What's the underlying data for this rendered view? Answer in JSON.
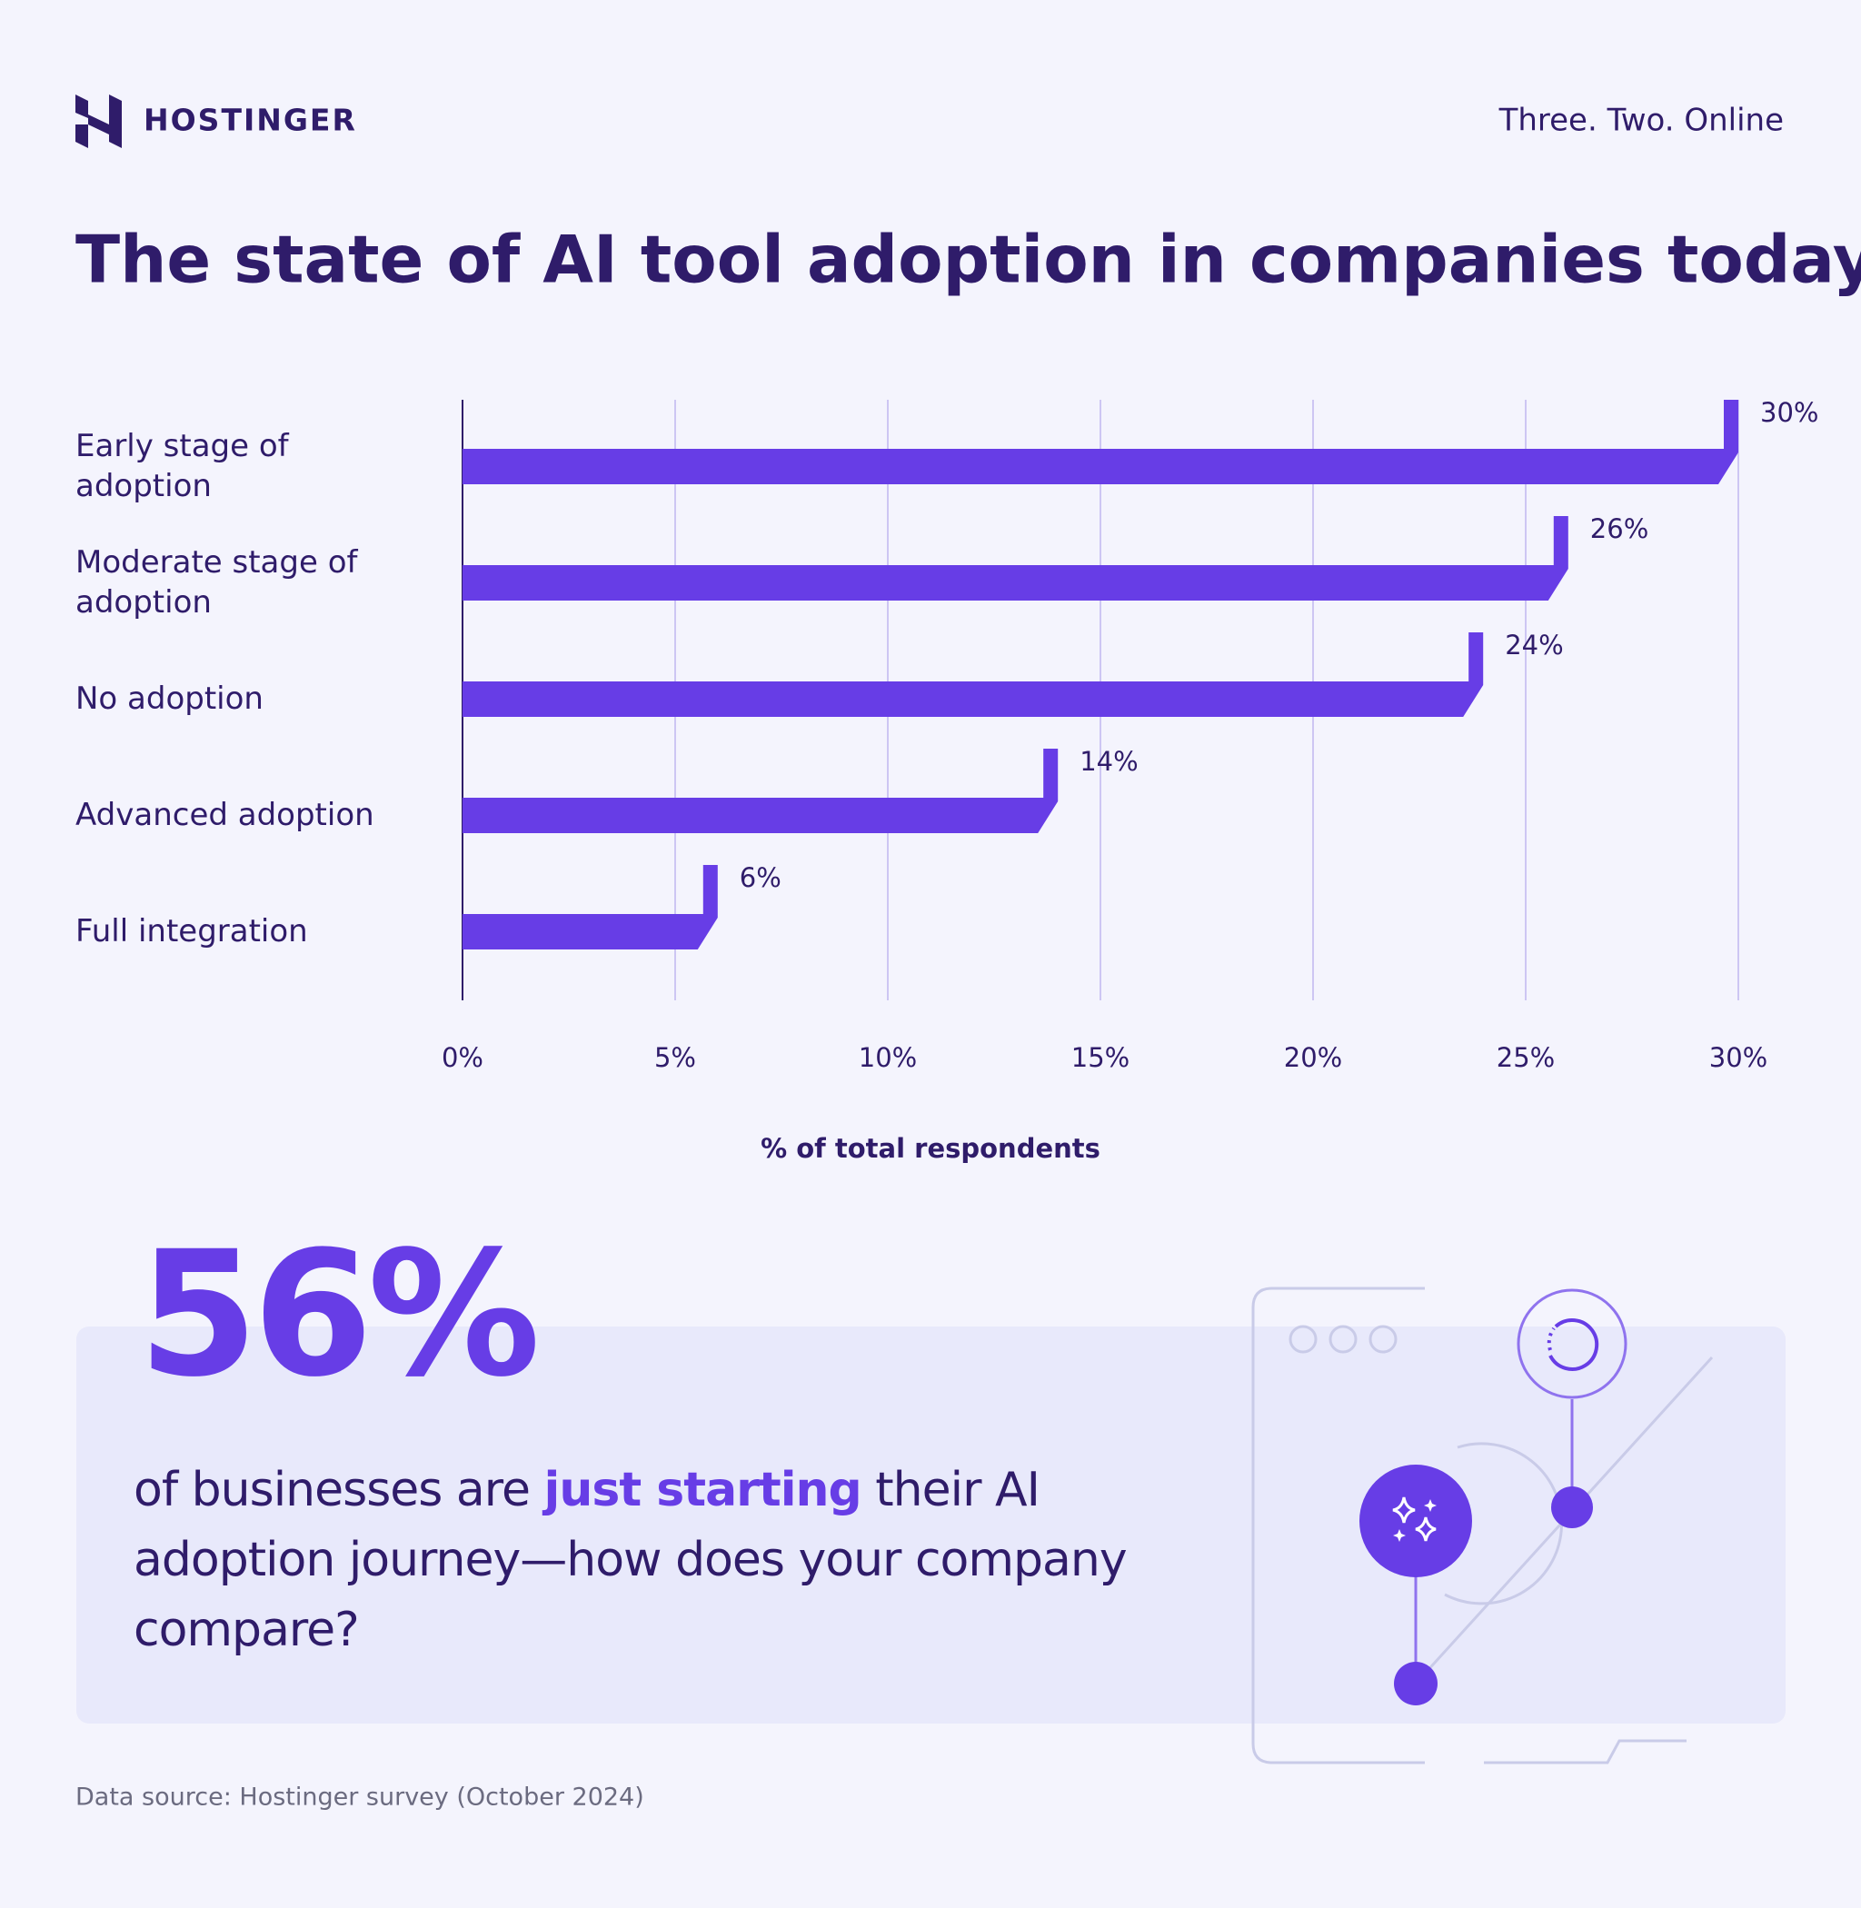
{
  "header": {
    "brand": "HOSTINGER",
    "tagline": "Three. Two. Online"
  },
  "chart_data": {
    "type": "bar",
    "orientation": "horizontal",
    "title": "The state of AI tool adoption in companies today",
    "categories": [
      "Early stage of adoption",
      "Moderate stage of adoption",
      "No adoption",
      "Advanced adoption",
      "Full integration"
    ],
    "values": [
      30,
      26,
      24,
      14,
      6
    ],
    "value_labels": [
      "30%",
      "26%",
      "24%",
      "14%",
      "6%"
    ],
    "color": "#673de6",
    "xlim": [
      0,
      30
    ],
    "xticks": [
      {
        "value": 0,
        "label": "0%"
      },
      {
        "value": 5,
        "label": "5%"
      },
      {
        "value": 10,
        "label": "10%"
      },
      {
        "value": 15,
        "label": "15%"
      },
      {
        "value": 20,
        "label": "20%"
      },
      {
        "value": 25,
        "label": "25%"
      },
      {
        "value": 30,
        "label": "30%"
      }
    ],
    "xlabel": "% of total respondents",
    "grid": true
  },
  "callout": {
    "stat": "56%",
    "text_before": "of businesses are",
    "highlight": "just starting",
    "text_after": "their AI adoption journey—how does your company compare?"
  },
  "footer": {
    "source": "Data source: Hostinger survey (October 2024)"
  }
}
